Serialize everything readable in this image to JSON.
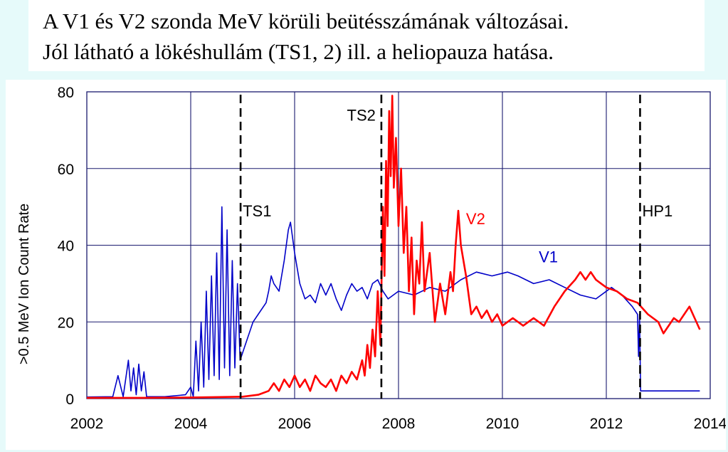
{
  "title_lines": [
    "A V1 és V2 szonda MeV körüli beütésszámának változásai.",
    "Jól látható a lökéshullám (TS1, 2) ill. a heliopauza hatása."
  ],
  "colors": {
    "background": "#e6fafa",
    "grid": "#1a1a6e",
    "v1": "#0000c8",
    "v2": "#ff0000",
    "marker": "#000000"
  },
  "chart_data": {
    "type": "line",
    "title": "",
    "xlabel": "",
    "ylabel": ">0.5 MeV Ion Count Rate",
    "xlim": [
      2002,
      2014
    ],
    "ylim": [
      0,
      80
    ],
    "grid": true,
    "xticks": [
      2002,
      2004,
      2006,
      2008,
      2010,
      2012,
      2014
    ],
    "yticks": [
      0,
      20,
      40,
      60,
      80
    ],
    "events": [
      {
        "label": "TS1",
        "x": 2004.96
      },
      {
        "label": "TS2",
        "x": 2007.67
      },
      {
        "label": "HP1",
        "x": 2012.65
      }
    ],
    "series": [
      {
        "name": "V1",
        "color": "#0000c8",
        "points": [
          [
            2002.0,
            0.4
          ],
          [
            2002.5,
            0.5
          ],
          [
            2002.6,
            6
          ],
          [
            2002.7,
            0.5
          ],
          [
            2002.8,
            10
          ],
          [
            2002.85,
            2
          ],
          [
            2002.9,
            8
          ],
          [
            2002.95,
            1
          ],
          [
            2003.0,
            9
          ],
          [
            2003.05,
            2
          ],
          [
            2003.1,
            7
          ],
          [
            2003.15,
            0.5
          ],
          [
            2003.5,
            0.5
          ],
          [
            2003.9,
            1
          ],
          [
            2004.0,
            3
          ],
          [
            2004.05,
            0.5
          ],
          [
            2004.1,
            15
          ],
          [
            2004.15,
            2
          ],
          [
            2004.2,
            20
          ],
          [
            2004.25,
            3
          ],
          [
            2004.3,
            28
          ],
          [
            2004.35,
            5
          ],
          [
            2004.4,
            32
          ],
          [
            2004.45,
            6
          ],
          [
            2004.5,
            38
          ],
          [
            2004.55,
            5
          ],
          [
            2004.6,
            50
          ],
          [
            2004.65,
            8
          ],
          [
            2004.7,
            44
          ],
          [
            2004.75,
            6
          ],
          [
            2004.8,
            36
          ],
          [
            2004.85,
            8
          ],
          [
            2004.9,
            30
          ],
          [
            2004.95,
            10
          ],
          [
            2005.0,
            12
          ],
          [
            2005.1,
            16
          ],
          [
            2005.2,
            20
          ],
          [
            2005.3,
            22
          ],
          [
            2005.45,
            25
          ],
          [
            2005.5,
            28
          ],
          [
            2005.55,
            32
          ],
          [
            2005.6,
            30
          ],
          [
            2005.7,
            28
          ],
          [
            2005.8,
            36
          ],
          [
            2005.88,
            44
          ],
          [
            2005.92,
            46
          ],
          [
            2006.0,
            38
          ],
          [
            2006.1,
            30
          ],
          [
            2006.2,
            26
          ],
          [
            2006.3,
            27
          ],
          [
            2006.4,
            25
          ],
          [
            2006.5,
            30
          ],
          [
            2006.6,
            27
          ],
          [
            2006.7,
            30
          ],
          [
            2006.8,
            26
          ],
          [
            2006.9,
            23
          ],
          [
            2007.0,
            27
          ],
          [
            2007.1,
            30
          ],
          [
            2007.2,
            28
          ],
          [
            2007.3,
            29
          ],
          [
            2007.4,
            26
          ],
          [
            2007.5,
            30
          ],
          [
            2007.6,
            31
          ],
          [
            2007.7,
            28
          ],
          [
            2007.8,
            26
          ],
          [
            2007.9,
            27
          ],
          [
            2008.0,
            28
          ],
          [
            2008.3,
            27
          ],
          [
            2008.6,
            29
          ],
          [
            2008.9,
            28
          ],
          [
            2009.2,
            31
          ],
          [
            2009.5,
            33
          ],
          [
            2009.8,
            32
          ],
          [
            2010.1,
            33
          ],
          [
            2010.3,
            32
          ],
          [
            2010.6,
            30
          ],
          [
            2010.9,
            31
          ],
          [
            2011.2,
            29
          ],
          [
            2011.5,
            27
          ],
          [
            2011.8,
            26
          ],
          [
            2012.1,
            29
          ],
          [
            2012.3,
            27
          ],
          [
            2012.5,
            24
          ],
          [
            2012.6,
            22
          ],
          [
            2012.62,
            11
          ],
          [
            2012.64,
            22
          ],
          [
            2012.66,
            2
          ],
          [
            2012.8,
            2
          ],
          [
            2013.2,
            2
          ],
          [
            2013.8,
            2
          ]
        ]
      },
      {
        "name": "V2",
        "color": "#ff0000",
        "points": [
          [
            2002.0,
            0.2
          ],
          [
            2003.0,
            0.2
          ],
          [
            2004.0,
            0.3
          ],
          [
            2005.0,
            0.5
          ],
          [
            2005.3,
            1
          ],
          [
            2005.5,
            2
          ],
          [
            2005.6,
            4
          ],
          [
            2005.7,
            2
          ],
          [
            2005.8,
            5
          ],
          [
            2005.9,
            3
          ],
          [
            2006.0,
            6
          ],
          [
            2006.1,
            3
          ],
          [
            2006.2,
            5
          ],
          [
            2006.3,
            2
          ],
          [
            2006.4,
            6
          ],
          [
            2006.5,
            4
          ],
          [
            2006.6,
            3
          ],
          [
            2006.7,
            5
          ],
          [
            2006.8,
            2
          ],
          [
            2006.9,
            6
          ],
          [
            2007.0,
            4
          ],
          [
            2007.1,
            7
          ],
          [
            2007.2,
            5
          ],
          [
            2007.3,
            10
          ],
          [
            2007.35,
            6
          ],
          [
            2007.4,
            14
          ],
          [
            2007.45,
            8
          ],
          [
            2007.5,
            18
          ],
          [
            2007.55,
            11
          ],
          [
            2007.6,
            28
          ],
          [
            2007.65,
            14
          ],
          [
            2007.7,
            50
          ],
          [
            2007.73,
            32
          ],
          [
            2007.76,
            62
          ],
          [
            2007.79,
            45
          ],
          [
            2007.82,
            75
          ],
          [
            2007.85,
            58
          ],
          [
            2007.88,
            79
          ],
          [
            2007.91,
            55
          ],
          [
            2007.95,
            68
          ],
          [
            2008.0,
            45
          ],
          [
            2008.05,
            60
          ],
          [
            2008.1,
            38
          ],
          [
            2008.15,
            50
          ],
          [
            2008.2,
            28
          ],
          [
            2008.25,
            42
          ],
          [
            2008.3,
            22
          ],
          [
            2008.35,
            36
          ],
          [
            2008.4,
            30
          ],
          [
            2008.45,
            46
          ],
          [
            2008.5,
            28
          ],
          [
            2008.6,
            38
          ],
          [
            2008.7,
            20
          ],
          [
            2008.8,
            30
          ],
          [
            2008.9,
            22
          ],
          [
            2009.0,
            33
          ],
          [
            2009.05,
            28
          ],
          [
            2009.1,
            40
          ],
          [
            2009.15,
            49
          ],
          [
            2009.2,
            40
          ],
          [
            2009.3,
            32
          ],
          [
            2009.4,
            22
          ],
          [
            2009.5,
            24
          ],
          [
            2009.6,
            21
          ],
          [
            2009.7,
            23
          ],
          [
            2009.8,
            20
          ],
          [
            2009.9,
            22
          ],
          [
            2010.0,
            19
          ],
          [
            2010.2,
            21
          ],
          [
            2010.4,
            19
          ],
          [
            2010.6,
            21
          ],
          [
            2010.8,
            19
          ],
          [
            2011.0,
            24
          ],
          [
            2011.2,
            28
          ],
          [
            2011.4,
            31
          ],
          [
            2011.5,
            33
          ],
          [
            2011.6,
            31
          ],
          [
            2011.7,
            33
          ],
          [
            2011.8,
            31
          ],
          [
            2011.9,
            30
          ],
          [
            2012.0,
            29
          ],
          [
            2012.2,
            28
          ],
          [
            2012.4,
            26
          ],
          [
            2012.6,
            25
          ],
          [
            2012.8,
            22
          ],
          [
            2013.0,
            20
          ],
          [
            2013.1,
            17
          ],
          [
            2013.2,
            19
          ],
          [
            2013.3,
            21
          ],
          [
            2013.4,
            20
          ],
          [
            2013.5,
            22
          ],
          [
            2013.6,
            24
          ],
          [
            2013.7,
            21
          ],
          [
            2013.8,
            18
          ]
        ]
      }
    ]
  }
}
